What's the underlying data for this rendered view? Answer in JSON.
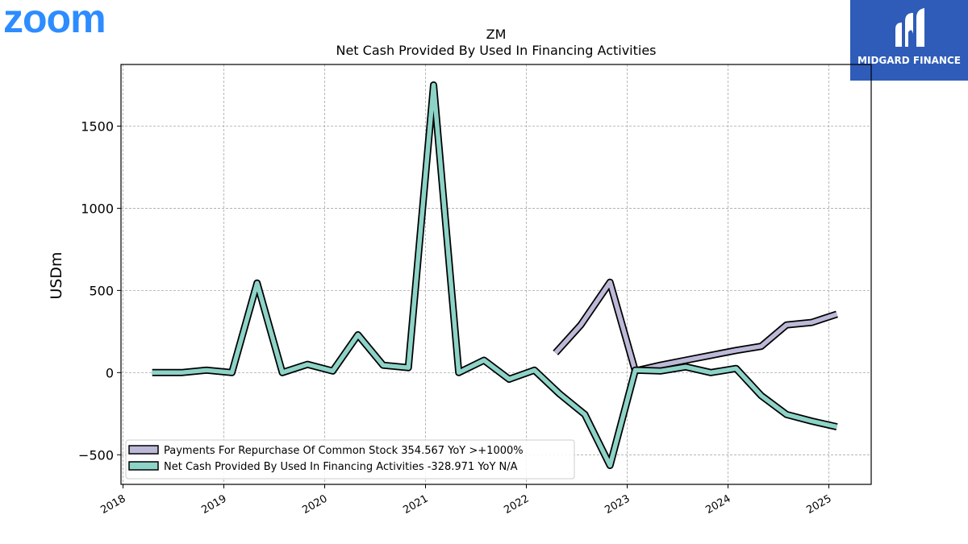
{
  "branding": {
    "zoom_logo": "zoom",
    "zoom_color": "#2D8CFF",
    "midgard_label": "MIDGARD FINANCE",
    "midgard_bg": "#2E5CB8"
  },
  "chart_data": {
    "type": "line",
    "title": "ZM",
    "subtitle": "Net Cash Provided By Used In Financing Activities",
    "xlabel": "",
    "ylabel": "USDm",
    "xlim": [
      2017.98,
      2025.42
    ],
    "ylim": [
      -680,
      1875
    ],
    "grid": true,
    "legend_position": "lower-left",
    "x_ticks": [
      "2018",
      "2019",
      "2020",
      "2021",
      "2022",
      "2023",
      "2024",
      "2025"
    ],
    "y_ticks": [
      -500,
      0,
      500,
      1000,
      1500
    ],
    "y_tick_labels": [
      "−500",
      "0",
      "500",
      "1000",
      "1500"
    ],
    "series": [
      {
        "name": "Payments For Repurchase Of Common Stock",
        "legend_label": "Payments For Repurchase Of Common Stock  354.567 YoY >+1000%",
        "color": "#BCB9D8",
        "x": [
          2022.29,
          2022.54,
          2022.83,
          2023.08,
          2023.33,
          2023.58,
          2023.83,
          2024.08,
          2024.33,
          2024.58,
          2024.83,
          2025.08
        ],
        "y": [
          120,
          290,
          550,
          10,
          45,
          75,
          105,
          135,
          160,
          290,
          305,
          355
        ]
      },
      {
        "name": "Net Cash Provided By Used In Financing Activities",
        "legend_label": "Net Cash Provided By Used In Financing Activities  -328.971 YoY N/A",
        "color": "#8DD3C7",
        "x": [
          2018.29,
          2018.58,
          2018.83,
          2019.08,
          2019.33,
          2019.58,
          2019.83,
          2020.08,
          2020.33,
          2020.58,
          2020.83,
          2021.08,
          2021.33,
          2021.58,
          2021.83,
          2022.08,
          2022.33,
          2022.58,
          2022.83,
          2023.08,
          2023.33,
          2023.58,
          2023.83,
          2024.08,
          2024.33,
          2024.58,
          2024.83,
          2025.08
        ],
        "y": [
          0,
          0,
          15,
          0,
          545,
          0,
          50,
          10,
          230,
          45,
          30,
          1750,
          0,
          75,
          -40,
          15,
          -130,
          -255,
          -565,
          15,
          10,
          35,
          0,
          25,
          -140,
          -255,
          -295,
          -330
        ]
      }
    ]
  }
}
